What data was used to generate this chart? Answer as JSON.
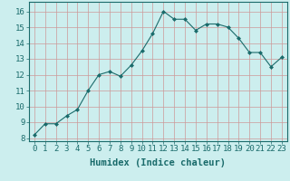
{
  "x": [
    0,
    1,
    2,
    3,
    4,
    5,
    6,
    7,
    8,
    9,
    10,
    11,
    12,
    13,
    14,
    15,
    16,
    17,
    18,
    19,
    20,
    21,
    22,
    23
  ],
  "y": [
    8.2,
    8.9,
    8.9,
    9.4,
    9.8,
    11.0,
    12.0,
    12.2,
    11.9,
    12.6,
    13.5,
    14.6,
    16.0,
    15.5,
    15.5,
    14.8,
    15.2,
    15.2,
    15.0,
    14.3,
    13.4,
    13.4,
    12.5,
    13.1
  ],
  "xlabel": "Humidex (Indice chaleur)",
  "xlim": [
    -0.5,
    23.5
  ],
  "ylim": [
    7.8,
    16.6
  ],
  "yticks": [
    8,
    9,
    10,
    11,
    12,
    13,
    14,
    15,
    16
  ],
  "xticks": [
    0,
    1,
    2,
    3,
    4,
    5,
    6,
    7,
    8,
    9,
    10,
    11,
    12,
    13,
    14,
    15,
    16,
    17,
    18,
    19,
    20,
    21,
    22,
    23
  ],
  "line_color": "#1a6b6b",
  "marker_color": "#1a6b6b",
  "bg_color": "#cceeee",
  "grid_color": "#cc9999",
  "tick_fontsize": 6.5,
  "label_fontsize": 7.5
}
